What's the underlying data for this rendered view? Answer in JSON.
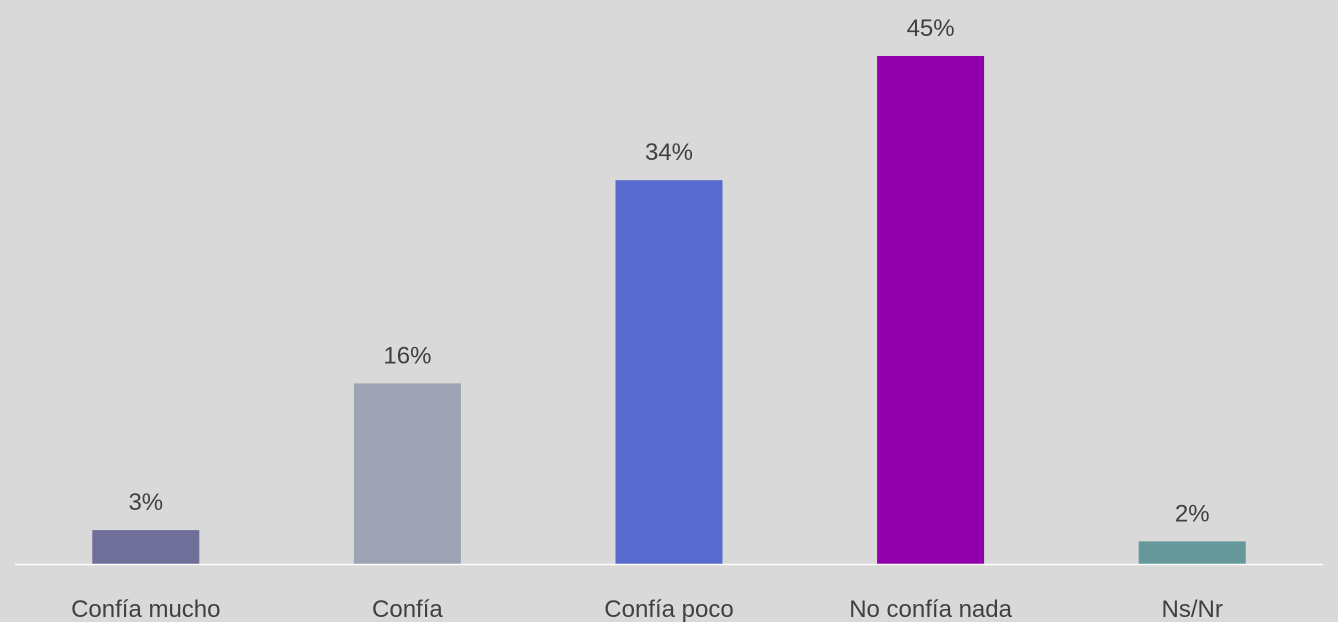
{
  "chart_data": {
    "type": "bar",
    "categories": [
      "Confía mucho",
      "Confía",
      "Confía poco",
      "No confía nada",
      "Ns/Nr"
    ],
    "values": [
      3,
      16,
      34,
      45,
      2
    ],
    "data_labels": [
      "3%",
      "16%",
      "34%",
      "45%",
      "2%"
    ],
    "colors": [
      "#6f6f99",
      "#9da3b5",
      "#5a6bcf",
      "#9100aa",
      "#64989a"
    ],
    "ylim": [
      0,
      45
    ],
    "grid": false,
    "legend": "none"
  },
  "style": {
    "background": "#d9d9d9",
    "axis_color": "#ffffff",
    "text_color": "#404040"
  }
}
